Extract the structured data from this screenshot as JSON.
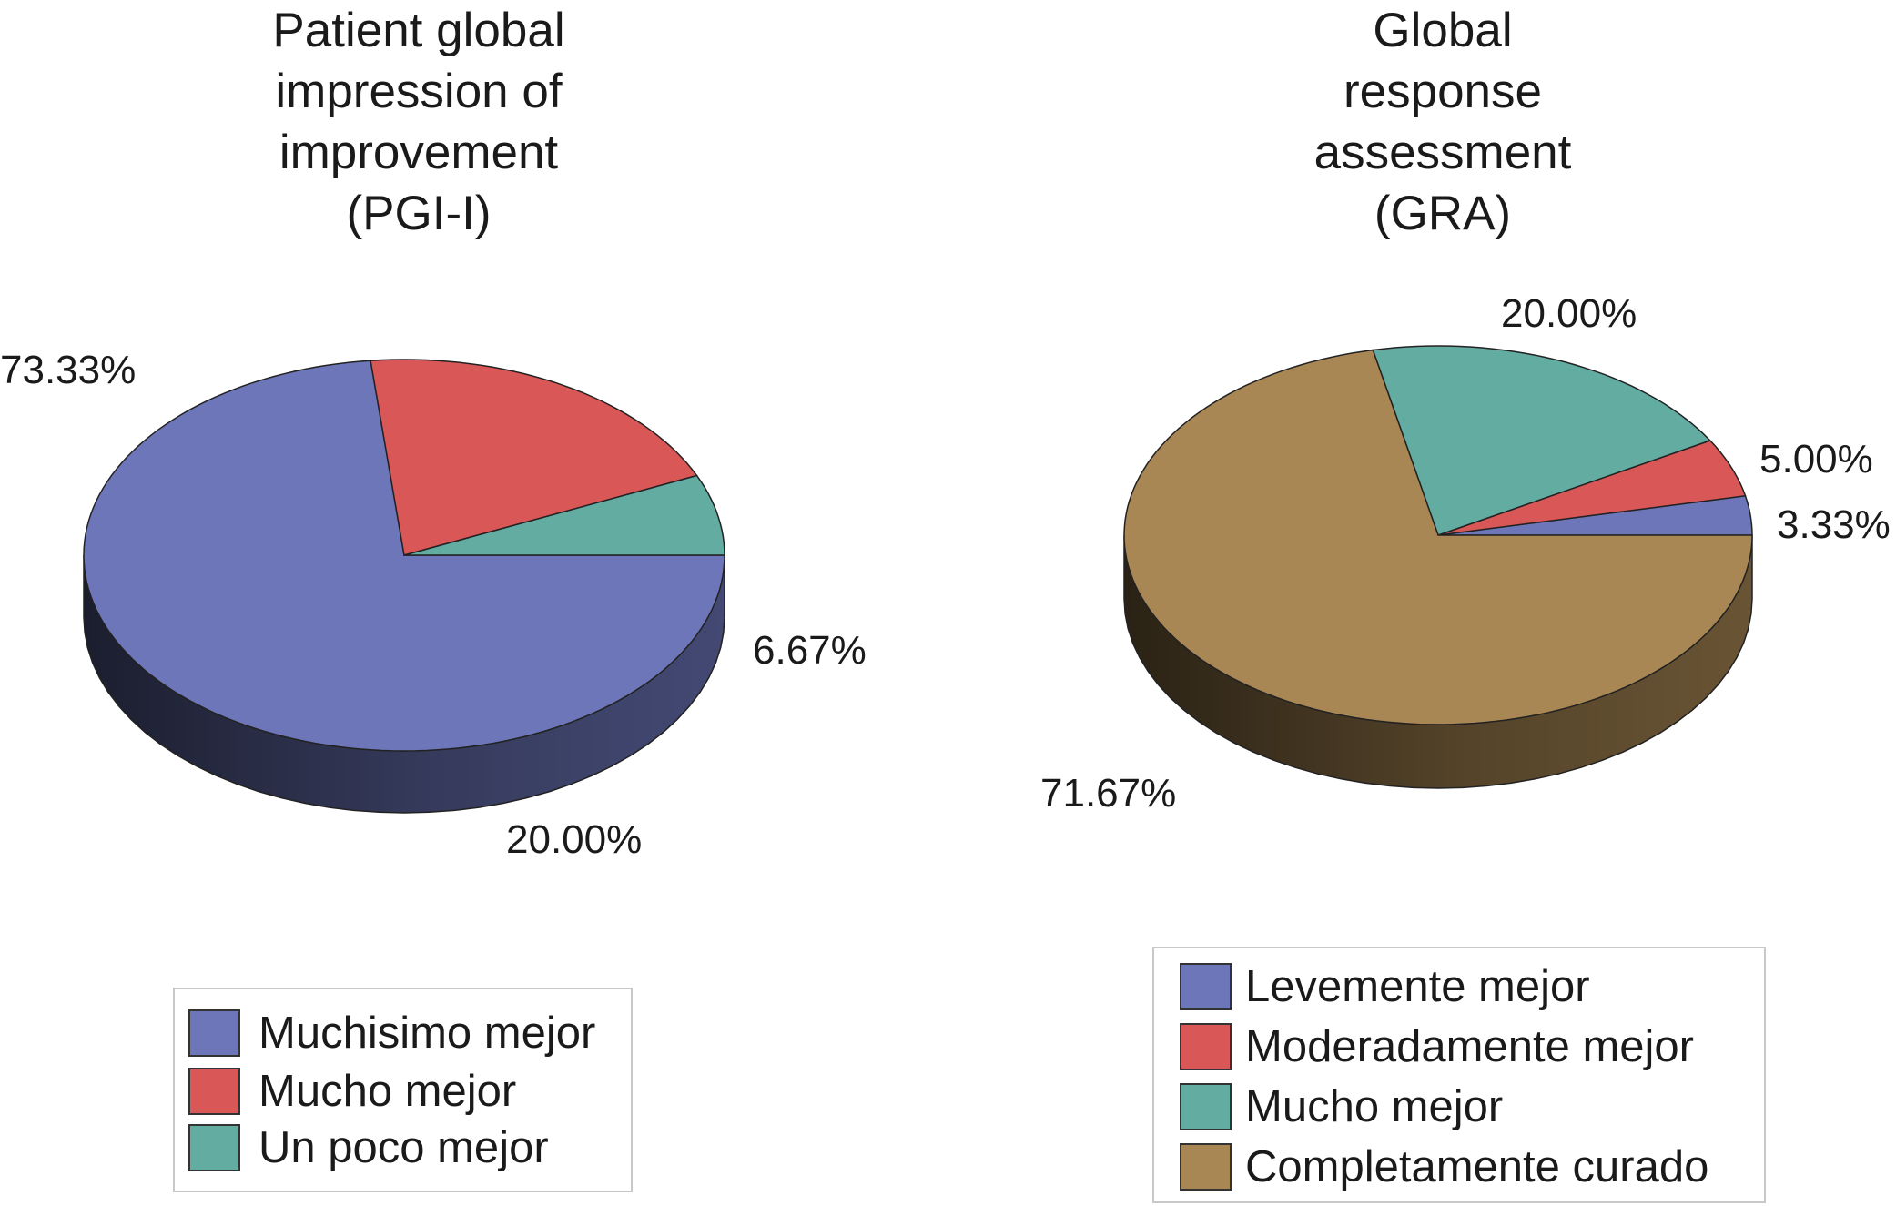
{
  "chart_data": [
    {
      "type": "pie",
      "title": "Patient global\nimpression of\nimprovement\n(PGI-I)",
      "slices": [
        {
          "label": "Muchisimo mejor",
          "value": 73.33,
          "value_label": "73.33%",
          "color": "#6c76b9"
        },
        {
          "label": "Mucho mejor",
          "value": 20.0,
          "value_label": "20.00%",
          "color": "#d95757"
        },
        {
          "label": "Un poco mejor",
          "value": 6.67,
          "value_label": "6.67%",
          "color": "#63aca2"
        }
      ],
      "legend": [
        "Muchisimo mejor",
        "Mucho mejor",
        "Un poco mejor"
      ]
    },
    {
      "type": "pie",
      "title": "Global\nresponse\nassessment\n(GRA)",
      "slices": [
        {
          "label": "Levemente mejor",
          "value": 3.33,
          "value_label": "3.33%",
          "color": "#6c76b9"
        },
        {
          "label": "Moderadamente mejor",
          "value": 5.0,
          "value_label": "5.00%",
          "color": "#d95757"
        },
        {
          "label": "Mucho mejor",
          "value": 20.0,
          "value_label": "20.00%",
          "color": "#63aca2"
        },
        {
          "label": "Completamente curado",
          "value": 71.67,
          "value_label": "71.67%",
          "color": "#a98754"
        }
      ],
      "legend": [
        "Levemente mejor",
        "Moderadamente mejor",
        "Mucho mejor",
        "Completamente curado"
      ]
    }
  ]
}
